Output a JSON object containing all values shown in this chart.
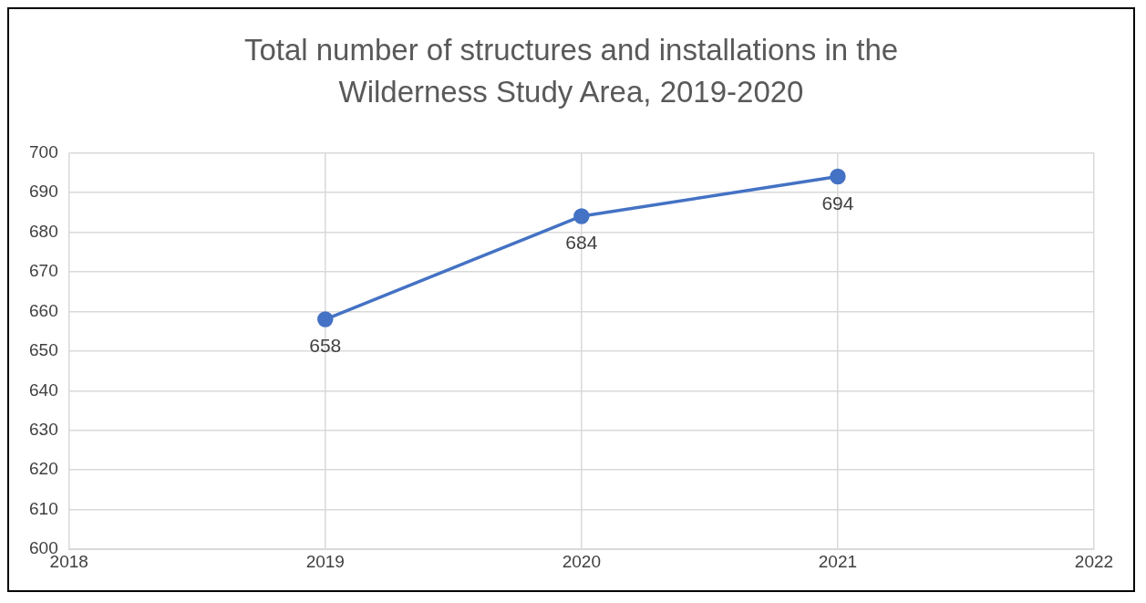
{
  "chart_data": {
    "type": "line",
    "title": "Total number of structures and installations in the Wilderness Study Area, 2019-2020",
    "x": [
      2019,
      2020,
      2021
    ],
    "series": [
      {
        "color": "#4472c4",
        "values": [
          658,
          684,
          694
        ]
      }
    ],
    "xlim": [
      2018,
      2022
    ],
    "xticks": [
      2018,
      2019,
      2020,
      2021,
      2022
    ],
    "ylim": [
      600,
      700
    ],
    "yticks": [
      600,
      610,
      620,
      630,
      640,
      650,
      660,
      670,
      680,
      690,
      700
    ],
    "grid": true,
    "legend": false,
    "marker": "circle",
    "line_style": "solid",
    "data_labels": true
  }
}
